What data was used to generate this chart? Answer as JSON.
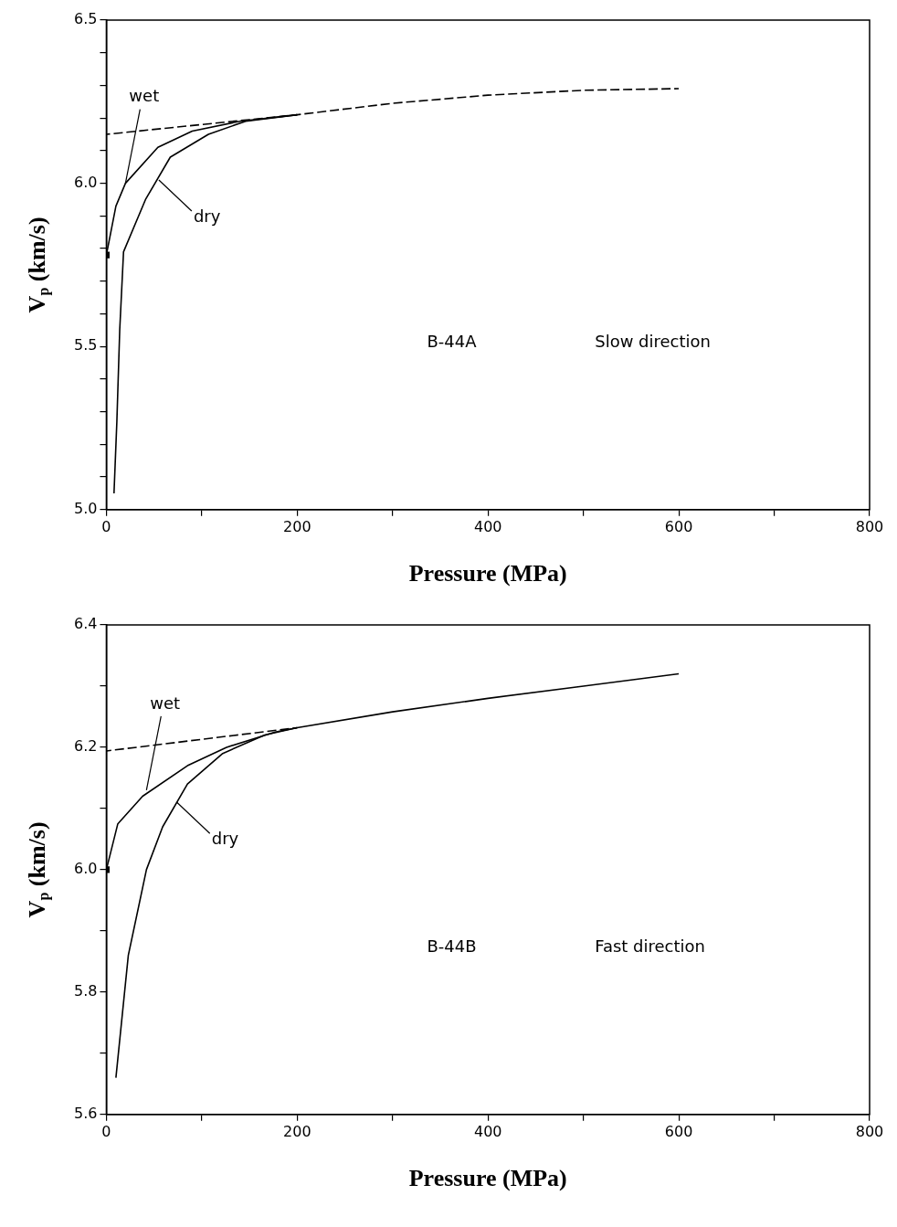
{
  "chart_data": [
    {
      "type": "line",
      "xlabel": "Pressure (MPa)",
      "ylabel": "V$_{p}$ (km/s)",
      "xlim": [
        0,
        800
      ],
      "ylim": [
        5.0,
        6.5
      ],
      "xticks": [
        0,
        {
          "value": 100,
          "label": null
        },
        200,
        {
          "value": 300,
          "label": null
        },
        400,
        {
          "value": 500,
          "label": null
        },
        600,
        {
          "value": 700,
          "label": null
        },
        800
      ],
      "yticks": [
        {
          "value": 5.0,
          "label": "5.0"
        },
        {
          "value": 5.1,
          "label": null
        },
        {
          "value": 5.2,
          "label": null
        },
        {
          "value": 5.3,
          "label": null
        },
        {
          "value": 5.4,
          "label": null
        },
        5.5,
        {
          "value": 5.6,
          "label": null
        },
        {
          "value": 5.7,
          "label": null
        },
        {
          "value": 5.8,
          "label": null
        },
        {
          "value": 5.9,
          "label": null
        },
        {
          "value": 6.0,
          "label": "6.0"
        },
        {
          "value": 6.1,
          "label": null
        },
        {
          "value": 6.2,
          "label": null
        },
        {
          "value": 6.3,
          "label": null
        },
        {
          "value": 6.4,
          "label": null
        },
        6.5
      ],
      "annotations": [
        {
          "text": "wet",
          "x": 20,
          "y": 6.0
        },
        {
          "text": "dry",
          "x": 55,
          "y": 6.01
        },
        "B-44A",
        "Slow direction"
      ],
      "series": [
        {
          "color": "#000000",
          "line_style": "solid",
          "x": [
            0,
            10,
            20,
            54,
            90,
            140,
            200
          ],
          "values": [
            5.78,
            5.93,
            6.0,
            6.11,
            6.16,
            6.19,
            6.21
          ]
        },
        {
          "color": "#000000",
          "line_style": "solid",
          "x": [
            8,
            11,
            14,
            18,
            41,
            67,
            107,
            146,
            200
          ],
          "values": [
            5.05,
            5.27,
            5.55,
            5.79,
            5.95,
            6.08,
            6.15,
            6.19,
            6.21
          ]
        },
        {
          "color": "#000000",
          "line_style": "dashed",
          "x": [
            0,
            50,
            100,
            150,
            200,
            300,
            400,
            500,
            600
          ],
          "values": [
            6.15,
            6.165,
            6.18,
            6.195,
            6.21,
            6.245,
            6.27,
            6.285,
            6.29
          ]
        },
        {
          "type": "scatter",
          "color": "#000000",
          "marker": "square",
          "x": [
            0
          ],
          "values": [
            5.78
          ]
        }
      ]
    },
    {
      "type": "line",
      "xlabel": "Pressure (MPa)",
      "ylabel": "V$_{p}$ (km/s)",
      "xlim": [
        0,
        800
      ],
      "ylim": [
        5.6,
        6.4
      ],
      "xticks": [
        0,
        {
          "value": 100,
          "label": null
        },
        200,
        {
          "value": 300,
          "label": null
        },
        400,
        {
          "value": 500,
          "label": null
        },
        600,
        {
          "value": 700,
          "label": null
        },
        800
      ],
      "yticks": [
        5.6,
        {
          "value": 5.7,
          "label": null
        },
        5.8,
        {
          "value": 5.9,
          "label": null
        },
        {
          "value": 6.0,
          "label": "6.0"
        },
        {
          "value": 6.1,
          "label": null
        },
        6.2,
        {
          "value": 6.3,
          "label": null
        },
        6.4
      ],
      "annotations": [
        {
          "text": "wet",
          "x": 42,
          "y": 6.13
        },
        {
          "text": "dry",
          "x": 74,
          "y": 6.11
        },
        "B-44B",
        "Fast direction"
      ],
      "series": [
        {
          "color": "#000000",
          "line_style": "solid",
          "x": [
            0,
            12,
            38,
            85,
            126,
            177,
            200
          ],
          "values": [
            6.0,
            6.075,
            6.12,
            6.17,
            6.2,
            6.225,
            6.232
          ]
        },
        {
          "color": "#000000",
          "line_style": "solid",
          "x": [
            10,
            23,
            42,
            59,
            85,
            122,
            166,
            200,
            300,
            400,
            500,
            600
          ],
          "values": [
            5.66,
            5.86,
            6.0,
            6.07,
            6.14,
            6.19,
            6.22,
            6.232,
            6.258,
            6.28,
            6.3,
            6.32
          ]
        },
        {
          "color": "#000000",
          "line_style": "dashed",
          "x": [
            0,
            100,
            200
          ],
          "values": [
            6.194,
            6.213,
            6.232
          ]
        },
        {
          "type": "scatter",
          "color": "#000000",
          "marker": "square",
          "x": [
            0
          ],
          "values": [
            6.0
          ]
        }
      ]
    }
  ]
}
